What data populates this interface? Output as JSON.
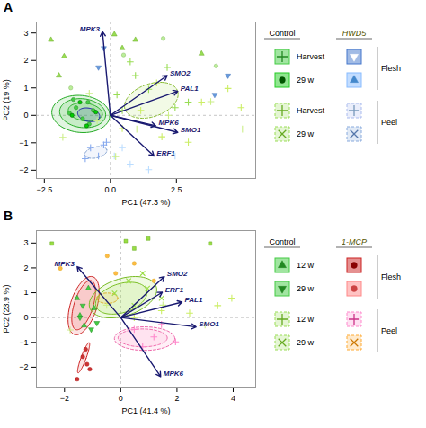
{
  "chart_data": [
    {
      "type": "scatter",
      "title": "A",
      "xlabel": "PC1 (47.3 %)",
      "ylabel": "PC2 (19 %)",
      "xlim": [
        -2.8,
        5.5
      ],
      "ylim": [
        -2.3,
        3.4
      ],
      "xticks": [
        -2.5,
        {
          "value": 0,
          "label": "0.0"
        },
        2.5
      ],
      "yticks": [
        -2,
        -1,
        0,
        1,
        2,
        3
      ],
      "reference_lines": [
        {
          "axis": "x",
          "value": 0
        },
        {
          "axis": "y",
          "value": 0
        }
      ],
      "ellipses": [
        {
          "cx": -0.95,
          "cy": 0.12,
          "width": 1.3,
          "height": 0.65,
          "angle": -8,
          "color": "#33bb33",
          "edge_color": "#22aa22",
          "line_style": "solid"
        },
        {
          "cx": -1.05,
          "cy": 0.08,
          "width": 1.75,
          "height": 1.05,
          "angle": -6,
          "color": "#33bb33",
          "edge_color": "#22aa22",
          "line_style": "solid"
        },
        {
          "cx": -1.12,
          "cy": 0.05,
          "width": 2.2,
          "height": 1.35,
          "angle": -5,
          "color": "#33bb33",
          "edge_color": "#22aa22",
          "line_style": "solid"
        },
        {
          "cx": -0.82,
          "cy": 0.02,
          "width": 0.85,
          "height": 0.48,
          "angle": -12,
          "color": "#3333bb",
          "edge_color": "#2222aa",
          "line_style": "solid"
        },
        {
          "cx": -0.55,
          "cy": -1.35,
          "width": 0.85,
          "height": 0.4,
          "angle": 12,
          "color": "#aabbee",
          "edge_color": "#7799cc",
          "line_style": "dashed"
        },
        {
          "cx": 1.55,
          "cy": 0.55,
          "width": 2.1,
          "height": 1.2,
          "angle": 18,
          "color": "#aadd55",
          "edge_color": "#88bb33",
          "line_style": "dashed"
        }
      ],
      "series": [
        {
          "color": "#44cc44",
          "edge_color": "#228822",
          "marker": "circle",
          "x": [
            -1.3,
            -0.85,
            -1.55,
            -1.05,
            -0.65,
            -1.4,
            -0.8
          ],
          "y": [
            0.28,
            0.48,
            0.08,
            -0.12,
            0.18,
            0.58,
            -0.32
          ]
        },
        {
          "color": "#00cc00",
          "edge_color": "#005500",
          "marker": "circle",
          "x": [
            -1.45,
            -0.55,
            -1.15,
            -0.9
          ],
          "y": [
            0.0,
            0.12,
            0.48,
            -0.38
          ]
        },
        {
          "color": "#99dd55",
          "marker": "plus",
          "x": [
            0.25,
            0.95,
            2.45,
            0.75,
            2.95,
            1.45,
            2.15,
            0.45
          ],
          "y": [
            0.75,
            1.45,
            0.28,
            1.95,
            0.48,
            0.95,
            1.75,
            0.18
          ]
        },
        {
          "color": "#88aaee",
          "marker": "plus",
          "x": [
            -0.75,
            -0.45,
            -0.25,
            -0.95,
            -0.15
          ],
          "y": [
            -1.18,
            -1.48,
            -1.08,
            -1.58,
            -0.98
          ]
        },
        {
          "color": "#ccee66",
          "marker": "plus",
          "x": [
            0.45,
            1.15,
            1.95,
            3.45,
            4.45,
            4.95,
            1.75,
            2.95
          ],
          "y": [
            -0.48,
            0.18,
            -0.78,
            0.48,
            0.98,
            0.28,
            1.18,
            -0.98
          ]
        },
        {
          "color": "#99dd55",
          "edge_color": "#66aa22",
          "marker": "triangle",
          "x": [
            -2.25,
            -1.75,
            -1.95,
            0.45,
            0.95,
            0.15,
            3.45
          ],
          "y": [
            2.75,
            2.15,
            1.45,
            2.45,
            2.75,
            2.95,
            2.25
          ]
        },
        {
          "color": "#6699dd",
          "edge_color": "#4477bb",
          "marker": "triangle-down",
          "x": [
            -0.45,
            -0.25,
            3.95,
            4.45
          ],
          "y": [
            1.75,
            2.45,
            0.75,
            1.45
          ]
        },
        {
          "color": "#bbddff",
          "marker": "plus",
          "x": [
            0.15,
            0.75,
            1.45,
            0.45,
            2.45
          ],
          "y": [
            -1.48,
            -1.78,
            -1.98,
            -1.18,
            -1.48
          ]
        },
        {
          "color": "#ccee88",
          "marker": "plus",
          "x": [
            -1.8,
            -0.5,
            0.2,
            2.2,
            3.8,
            5.0,
            -0.8,
            1.0
          ],
          "y": [
            -0.8,
            -0.2,
            -1.5,
            0.0,
            0.5,
            -0.5,
            0.8,
            -0.5
          ]
        },
        {
          "color": "#bbee99",
          "edge_color": "#88bb66",
          "marker": "circle",
          "x": [
            -1.5,
            0.5,
            2.0,
            4.0
          ],
          "y": [
            1.0,
            2.2,
            2.8,
            1.8
          ]
        }
      ],
      "arrows": {
        "color": "#191970",
        "label_color": "#191970",
        "origin": [
          0,
          0
        ],
        "items": [
          {
            "label": "MPK3",
            "x": -0.3,
            "y": 3.05
          },
          {
            "label": "SMO2",
            "x": 2.15,
            "y": 1.45
          },
          {
            "label": "PAL1",
            "x": 2.55,
            "y": 0.88
          },
          {
            "label": "MPK6",
            "x": 1.72,
            "y": -0.38
          },
          {
            "label": "SMO1",
            "x": 2.55,
            "y": -0.62
          },
          {
            "label": "ERF1",
            "x": 1.65,
            "y": -1.48
          }
        ]
      },
      "legend_table": {
        "columns": [
          {
            "label": "Control"
          },
          {
            "label": "HWD5",
            "color": "#555500"
          }
        ],
        "groups": [
          {
            "label": "Flesh",
            "line_style": "solid",
            "rows": [
              {
                "label": "Harvest",
                "cells": [
                  {
                    "color": "#44cc44",
                    "marker": "plus",
                    "marker_color": "#228822"
                  },
                  {
                    "color": "#4477cc",
                    "marker": "triangle-down",
                    "marker_color": "#ffffff"
                  }
                ]
              },
              {
                "label": "29 w",
                "cells": [
                  {
                    "color": "#22cc22",
                    "marker": "circle",
                    "marker_color": "#005500"
                  },
                  {
                    "color": "#88bbff",
                    "marker": "triangle",
                    "marker_color": "#4488cc"
                  }
                ]
              }
            ]
          },
          {
            "label": "Peel",
            "line_style": "dashed",
            "rows": [
              {
                "label": "Harvest",
                "cells": [
                  {
                    "color": "#99dd55",
                    "marker": "plus",
                    "marker_color": "#66aa22"
                  },
                  {
                    "color": "#aabbee",
                    "marker": "plus",
                    "marker_color": "#7799bb"
                  }
                ]
              },
              {
                "label": "29 w",
                "cells": [
                  {
                    "color": "#99dd55",
                    "marker": "times",
                    "marker_color": "#66aa22"
                  },
                  {
                    "color": "#88aadd",
                    "marker": "times",
                    "marker_color": "#5577aa"
                  }
                ]
              }
            ]
          }
        ]
      }
    },
    {
      "type": "scatter",
      "title": "B",
      "xlabel": "PC1 (41.4 %)",
      "ylabel": "PC2 (23.9 %)",
      "xlim": [
        -3.0,
        4.8
      ],
      "ylim": [
        -2.8,
        3.5
      ],
      "xticks": [
        -2,
        0,
        2,
        4
      ],
      "yticks": [
        -2,
        -1,
        0,
        1,
        2,
        3
      ],
      "reference_lines": [
        {
          "axis": "x",
          "value": 0
        },
        {
          "axis": "y",
          "value": 0
        }
      ],
      "ellipses": [
        {
          "cx": -1.32,
          "cy": 0.5,
          "width": 0.68,
          "height": 2.05,
          "angle": -15,
          "color": "#ee4444",
          "edge_color": "#cc2222",
          "line_style": "solid"
        },
        {
          "cx": -1.32,
          "cy": 0.48,
          "width": 0.95,
          "height": 2.42,
          "angle": -15,
          "color": "#ee4444",
          "edge_color": "#cc2222",
          "line_style": "solid"
        },
        {
          "cx": 0.02,
          "cy": 0.78,
          "width": 1.92,
          "height": 1.15,
          "angle": 22,
          "color": "#99dd44",
          "edge_color": "#77bb22",
          "line_style": "solid"
        },
        {
          "cx": 0.08,
          "cy": 0.82,
          "width": 2.52,
          "height": 1.48,
          "angle": 22,
          "color": "#99dd44",
          "edge_color": "#77bb22",
          "line_style": "solid"
        },
        {
          "cx": 0.78,
          "cy": -0.82,
          "width": 1.75,
          "height": 0.72,
          "angle": 0,
          "color": "#ff99cc",
          "edge_color": "#ee66aa",
          "line_style": "dashed"
        },
        {
          "cx": 0.85,
          "cy": -0.85,
          "width": 2.15,
          "height": 0.95,
          "angle": 0,
          "color": "#ff99cc",
          "edge_color": "#ee66aa",
          "line_style": "dashed"
        },
        {
          "cx": -1.32,
          "cy": -1.62,
          "width": 0.18,
          "height": 1.28,
          "angle": -18,
          "color": "#ee4444",
          "edge_color": "#cc2222",
          "line_style": "solid"
        },
        {
          "cx": -0.48,
          "cy": 0.78,
          "width": 0.75,
          "height": 0.42,
          "angle": 0,
          "color": "#ffbb44",
          "edge_color": "#ddaa22",
          "line_style": "dashed"
        }
      ],
      "series": [
        {
          "color": "#44cc44",
          "edge_color": "#228822",
          "marker": "triangle",
          "x": [
            -1.55,
            -1.15,
            -1.45,
            -0.95,
            -1.3
          ],
          "y": [
            0.78,
            1.18,
            0.08,
            0.38,
            -0.32
          ]
        },
        {
          "color": "#44cc44",
          "edge_color": "#228822",
          "marker": "triangle-down",
          "x": [
            -1.45,
            -1.05,
            -1.35,
            -0.85
          ],
          "y": [
            0.0,
            -0.48,
            0.48,
            -0.22
          ]
        },
        {
          "color": "#cc3333",
          "edge_color": "#aa1111",
          "marker": "circle",
          "x": [
            -1.25,
            -1.1,
            -1.35,
            -1.55,
            -1.2
          ],
          "y": [
            -1.28,
            -2.08,
            -1.58,
            -2.48,
            -1.88
          ]
        },
        {
          "color": "#99dd44",
          "marker": "times",
          "x": [
            0.48,
            0.95,
            1.45,
            0.78,
            -0.22,
            0.28
          ],
          "y": [
            0.48,
            1.18,
            0.78,
            1.78,
            0.98,
            1.48
          ]
        },
        {
          "color": "#ff88cc",
          "marker": "plus",
          "x": [
            0.48,
            1.18,
            1.95,
            1.45,
            0.78
          ],
          "y": [
            -0.48,
            -0.78,
            -0.98,
            -0.28,
            -1.18
          ]
        },
        {
          "color": "#ccee66",
          "marker": "plus",
          "x": [
            0.48,
            1.45,
            2.45,
            3.45,
            3.95
          ],
          "y": [
            0.0,
            0.28,
            0.18,
            0.48,
            0.78
          ]
        },
        {
          "color": "#99dd44",
          "edge_color": "#66aa22",
          "marker": "square",
          "x": [
            -2.45,
            0.18,
            0.48,
            0.98,
            3.18
          ],
          "y": [
            2.98,
            3.08,
            2.78,
            3.18,
            2.98
          ]
        },
        {
          "color": "#ffbb44",
          "edge_color": "#ddaa22",
          "marker": "circle",
          "x": [
            -2.15,
            -0.48,
            -0.18,
            0.48,
            1.18
          ],
          "y": [
            1.98,
            2.48,
            1.78,
            2.18,
            1.48
          ]
        },
        {
          "color": "#ccee88",
          "marker": "plus",
          "x": [
            -1.8,
            -0.5,
            1.5,
            3.0
          ],
          "y": [
            -0.5,
            0.5,
            0.5,
            -0.3
          ]
        }
      ],
      "arrows": {
        "color": "#191970",
        "label_color": "#191970",
        "origin": [
          0,
          0
        ],
        "items": [
          {
            "label": "MPK3",
            "x": -1.55,
            "y": 2.05
          },
          {
            "label": "SMO2",
            "x": 1.55,
            "y": 1.65
          },
          {
            "label": "ERF1",
            "x": 1.48,
            "y": 1.02
          },
          {
            "label": "PAL1",
            "x": 2.18,
            "y": 0.62
          },
          {
            "label": "SMO1",
            "x": 2.68,
            "y": -0.38
          },
          {
            "label": "MPK6",
            "x": 1.42,
            "y": -2.38
          }
        ]
      },
      "legend_table": {
        "columns": [
          {
            "label": "Control"
          },
          {
            "label": "1-MCP",
            "color": "#555500"
          }
        ],
        "groups": [
          {
            "label": "Flesh",
            "line_style": "solid",
            "rows": [
              {
                "label": "12 w",
                "cells": [
                  {
                    "color": "#44cc44",
                    "marker": "triangle",
                    "marker_color": "#228822"
                  },
                  {
                    "color": "#cc2222",
                    "marker": "circle",
                    "marker_color": "#880000"
                  }
                ]
              },
              {
                "label": "29 w",
                "cells": [
                  {
                    "color": "#44cc44",
                    "marker": "triangle-down",
                    "marker_color": "#228822"
                  },
                  {
                    "color": "#ff8888",
                    "marker": "circle",
                    "marker_color": "#cc4444"
                  }
                ]
              }
            ]
          },
          {
            "label": "Peel",
            "line_style": "dashed",
            "rows": [
              {
                "label": "12 w",
                "cells": [
                  {
                    "color": "#99dd55",
                    "marker": "plus",
                    "marker_color": "#66aa22"
                  },
                  {
                    "color": "#ff88cc",
                    "marker": "plus",
                    "marker_color": "#cc3388"
                  }
                ]
              },
              {
                "label": "29 w",
                "cells": [
                  {
                    "color": "#99dd55",
                    "marker": "times",
                    "marker_color": "#66aa22"
                  },
                  {
                    "color": "#ffaa33",
                    "marker": "times",
                    "marker_color": "#cc7700"
                  }
                ]
              }
            ]
          }
        ]
      }
    }
  ]
}
